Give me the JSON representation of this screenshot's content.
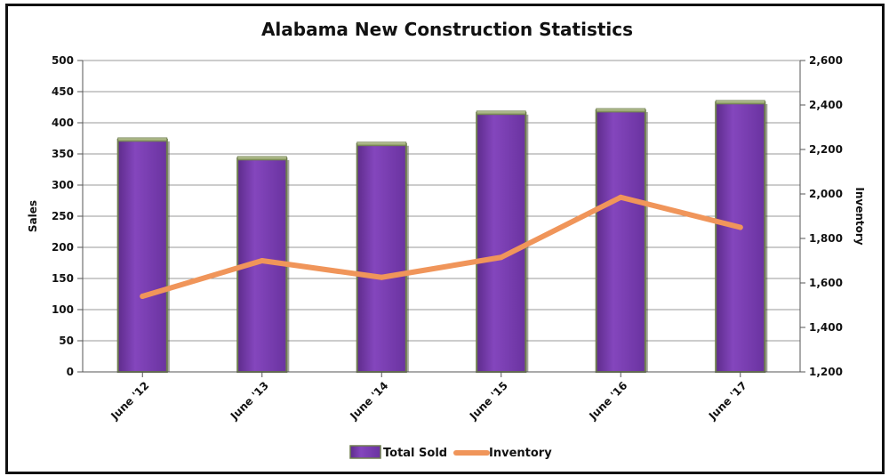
{
  "chart_data": {
    "type": "bar",
    "title": "Alabama New Construction Statistics",
    "categories": [
      "June '12",
      "June '13",
      "June '14",
      "June '15",
      "June '16",
      "June '17"
    ],
    "series": [
      {
        "name": "Total Sold",
        "type": "bar",
        "axis": "left",
        "values": [
          373,
          343,
          366,
          416,
          420,
          433
        ]
      },
      {
        "name": "Inventory",
        "type": "line",
        "axis": "right",
        "values": [
          1540,
          1700,
          1625,
          1715,
          1985,
          1850
        ]
      }
    ],
    "ylabel": "Sales",
    "ylim": [
      0,
      500
    ],
    "yticks": [
      "0",
      "50",
      "100",
      "150",
      "200",
      "250",
      "300",
      "350",
      "400",
      "450",
      "500"
    ],
    "y2label": "Inventory",
    "y2lim": [
      1200,
      2600
    ],
    "y2ticks": [
      "1,200",
      "1,400",
      "1,600",
      "1,800",
      "2,000",
      "2,200",
      "2,400",
      "2,600"
    ],
    "grid": true,
    "legend": "bottom",
    "colors": {
      "bar": "#7a3fae",
      "bar_edge": "#6e7d4e",
      "line": "#f0955a"
    }
  }
}
